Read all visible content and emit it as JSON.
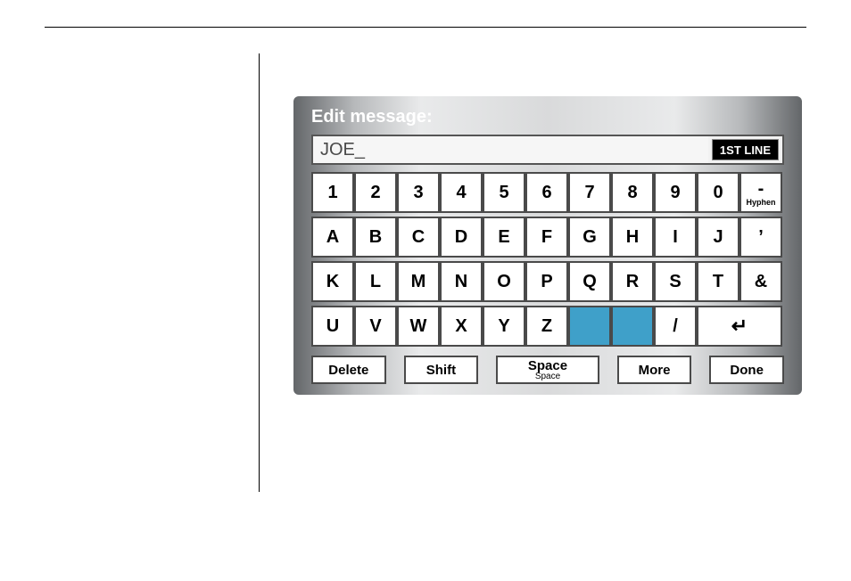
{
  "title": "Edit message:",
  "input_value": "JOE_",
  "line_badge": "1ST LINE",
  "colors": {
    "device_gradient": [
      "#636669",
      "#b7b9bb",
      "#e9eaeb",
      "#d9dadb",
      "#e9eaeb",
      "#b7b9bb",
      "#636669"
    ],
    "key_bg": "#ffffff",
    "key_border": "#4a4a4a",
    "special_key_bg": "#3fa0c9",
    "title_color": "#ffffff",
    "input_text_color": "#4a4a4a",
    "badge_bg": "#000000",
    "badge_fg": "#ffffff"
  },
  "rows": [
    [
      {
        "label": "1"
      },
      {
        "label": "2"
      },
      {
        "label": "3"
      },
      {
        "label": "4"
      },
      {
        "label": "5"
      },
      {
        "label": "6"
      },
      {
        "label": "7"
      },
      {
        "label": "8"
      },
      {
        "label": "9"
      },
      {
        "label": "0"
      },
      {
        "label": "-",
        "sublabel": "Hyphen"
      }
    ],
    [
      {
        "label": "A"
      },
      {
        "label": "B"
      },
      {
        "label": "C"
      },
      {
        "label": "D"
      },
      {
        "label": "E"
      },
      {
        "label": "F"
      },
      {
        "label": "G"
      },
      {
        "label": "H"
      },
      {
        "label": "I"
      },
      {
        "label": "J"
      },
      {
        "label": "’"
      }
    ],
    [
      {
        "label": "K"
      },
      {
        "label": "L"
      },
      {
        "label": "M"
      },
      {
        "label": "N"
      },
      {
        "label": "O"
      },
      {
        "label": "P"
      },
      {
        "label": "Q"
      },
      {
        "label": "R"
      },
      {
        "label": "S"
      },
      {
        "label": "T"
      },
      {
        "label": "&"
      }
    ],
    [
      {
        "label": "U"
      },
      {
        "label": "V"
      },
      {
        "label": "W"
      },
      {
        "label": "X"
      },
      {
        "label": "Y"
      },
      {
        "label": "Z"
      },
      {
        "label": "",
        "special": true
      },
      {
        "label": "",
        "special": true
      },
      {
        "label": "/"
      },
      {
        "label": "↵",
        "enter": true,
        "span": 2
      }
    ]
  ],
  "buttons": {
    "delete": "Delete",
    "shift": "Shift",
    "space": {
      "label": "Space",
      "sublabel": "Space"
    },
    "more": "More",
    "done": "Done"
  }
}
